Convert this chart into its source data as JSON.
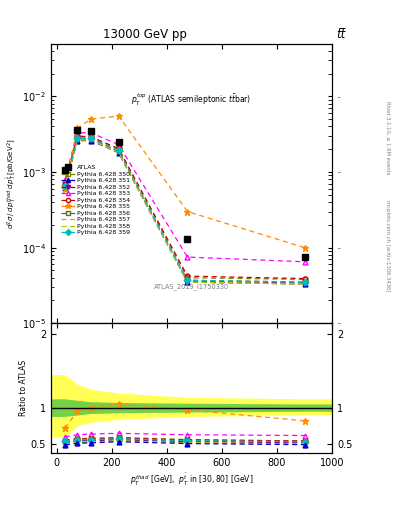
{
  "title_top": "13000 GeV pp",
  "title_right": "tt̅",
  "plot_label": "p_T^{top} (ATLAS semileptonic ttbar)",
  "watermark": "ATLAS_2019_I1750330",
  "rivet_label": "Rivet 3.1.10, ≥ 1.9M events",
  "mcplots_label": "mcplots.cern.ch [arXiv:1306.3436]",
  "x_data": [
    30,
    75,
    125,
    225,
    475,
    900
  ],
  "atlas_y": [
    0.00105,
    0.0036,
    0.0035,
    0.0025,
    0.00013,
    7.5e-05
  ],
  "pythia_350_y": [
    0.00068,
    0.0029,
    0.0029,
    0.002,
    4e-05,
    3.8e-05
  ],
  "pythia_351_y": [
    0.00062,
    0.0026,
    0.0026,
    0.0018,
    3.5e-05,
    3.3e-05
  ],
  "pythia_352_y": [
    0.00064,
    0.0027,
    0.0027,
    0.00185,
    3.6e-05,
    3.4e-05
  ],
  "pythia_353_y": [
    0.00078,
    0.0033,
    0.0033,
    0.0023,
    7.5e-05,
    6.5e-05
  ],
  "pythia_354_y": [
    0.0007,
    0.003,
    0.0029,
    0.00205,
    4.2e-05,
    3.9e-05
  ],
  "pythia_355_y": [
    0.0006,
    0.0038,
    0.005,
    0.0055,
    0.0003,
    0.0001
  ],
  "pythia_356_y": [
    0.00065,
    0.00275,
    0.00275,
    0.0019,
    3.7e-05,
    3.5e-05
  ],
  "pythia_357_y": [
    0.00063,
    0.00265,
    0.00265,
    0.00182,
    3.5e-05,
    3.3e-05
  ],
  "pythia_358_y": [
    0.00063,
    0.00265,
    0.00265,
    0.00182,
    3.5e-05,
    3.3e-05
  ],
  "pythia_359_y": [
    0.00066,
    0.00278,
    0.00278,
    0.00193,
    3.7e-05,
    3.5e-05
  ],
  "ratio_355": [
    0.72,
    0.95,
    1.0,
    1.05,
    0.97,
    0.82
  ],
  "ratio_353": [
    0.6,
    0.63,
    0.64,
    0.65,
    0.63,
    0.62
  ],
  "ratio_350": [
    0.55,
    0.575,
    0.585,
    0.595,
    0.565,
    0.545
  ],
  "ratio_354": [
    0.55,
    0.575,
    0.57,
    0.585,
    0.56,
    0.545
  ],
  "ratio_356": [
    0.53,
    0.555,
    0.56,
    0.575,
    0.545,
    0.53
  ],
  "ratio_352": [
    0.52,
    0.545,
    0.55,
    0.56,
    0.535,
    0.52
  ],
  "ratio_359": [
    0.54,
    0.56,
    0.565,
    0.575,
    0.55,
    0.535
  ],
  "ratio_357": [
    0.5,
    0.525,
    0.53,
    0.545,
    0.52,
    0.505
  ],
  "ratio_358": [
    0.5,
    0.525,
    0.53,
    0.545,
    0.52,
    0.505
  ],
  "ratio_351": [
    0.49,
    0.515,
    0.52,
    0.535,
    0.51,
    0.495
  ],
  "band_outer_lo": [
    0.6,
    0.75,
    0.8,
    0.84,
    0.88,
    0.9
  ],
  "band_outer_hi": [
    1.45,
    1.32,
    1.25,
    1.2,
    1.14,
    1.12
  ],
  "band_inner_lo": [
    0.88,
    0.9,
    0.92,
    0.93,
    0.94,
    0.95
  ],
  "band_inner_hi": [
    1.12,
    1.1,
    1.08,
    1.07,
    1.06,
    1.05
  ],
  "colors": {
    "atlas": "#000000",
    "p350": "#808000",
    "p351": "#0000cd",
    "p352": "#800080",
    "p353": "#ff00ff",
    "p354": "#cc0000",
    "p355": "#ff8c00",
    "p356": "#556b2f",
    "p357": "#ccaa00",
    "p358": "#aacc00",
    "p359": "#00bbbb"
  },
  "ylim_main": [
    1e-05,
    0.05
  ],
  "ylim_ratio": [
    0.38,
    2.15
  ],
  "xlim": [
    -20,
    1000
  ]
}
